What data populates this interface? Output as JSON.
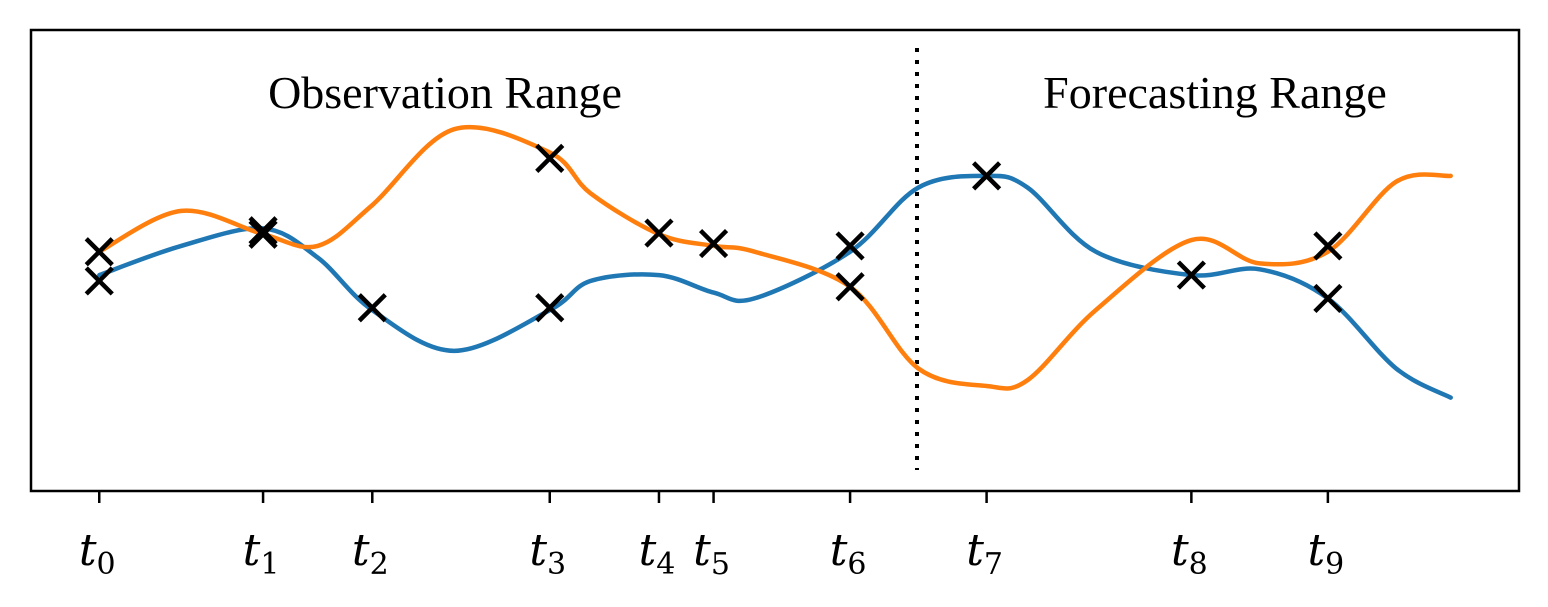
{
  "chart_data": {
    "type": "line",
    "annotations": {
      "observation": "Observation Range",
      "forecasting": "Forecasting Range"
    },
    "divider_x": 6.5,
    "xlim": [
      -0.5,
      10.4
    ],
    "ylim": [
      -1.85,
      2.1
    ],
    "ticks": [
      {
        "name": "t",
        "sub": "0",
        "x": 0
      },
      {
        "name": "t",
        "sub": "1",
        "x": 1.2
      },
      {
        "name": "t",
        "sub": "2",
        "x": 2.0
      },
      {
        "name": "t",
        "sub": "3",
        "x": 3.3
      },
      {
        "name": "t",
        "sub": "4",
        "x": 4.1
      },
      {
        "name": "t",
        "sub": "5",
        "x": 4.5
      },
      {
        "name": "t",
        "sub": "6",
        "x": 5.5
      },
      {
        "name": "t",
        "sub": "7",
        "x": 6.5
      },
      {
        "name": "t",
        "sub": "8",
        "x": 8.0
      },
      {
        "name": "t",
        "sub": "9",
        "x": 9.0
      }
    ],
    "series": [
      {
        "color": "#1f77b4",
        "x": [
          0,
          0.6,
          1.2,
          1.6,
          2.0,
          2.6,
          3.3,
          3.6,
          4.1,
          4.5,
          4.8,
          5.5,
          6.0,
          6.5,
          6.8,
          7.3,
          8.0,
          8.5,
          9.0,
          9.5,
          9.9
        ],
        "y": [
          0,
          0.25,
          0.4,
          0.15,
          -0.3,
          -0.65,
          -0.3,
          -0.05,
          0,
          -0.15,
          -0.2,
          0.2,
          0.75,
          0.85,
          0.75,
          0.2,
          0,
          0.05,
          -0.2,
          -0.8,
          -1.05
        ],
        "markers": [
          [
            0,
            -0.05
          ],
          [
            1.2,
            0.38
          ],
          [
            2.0,
            -0.28
          ],
          [
            3.3,
            -0.28
          ],
          [
            5.5,
            0.25
          ],
          [
            6.5,
            0.85
          ],
          [
            8.0,
            0.0
          ],
          [
            9.0,
            -0.2
          ]
        ]
      },
      {
        "color": "#ff7f0e",
        "x": [
          0,
          0.6,
          1.2,
          1.6,
          2.0,
          2.6,
          3.3,
          3.6,
          4.1,
          4.5,
          4.8,
          5.5,
          6.0,
          6.5,
          6.8,
          7.3,
          8.0,
          8.5,
          9.0,
          9.5,
          9.9
        ],
        "y": [
          0.2,
          0.55,
          0.35,
          0.25,
          0.6,
          1.25,
          1.05,
          0.7,
          0.35,
          0.25,
          0.2,
          -0.1,
          -0.8,
          -0.95,
          -0.9,
          -0.3,
          0.3,
          0.1,
          0.2,
          0.8,
          0.85
        ],
        "markers": [
          [
            0,
            0.2
          ],
          [
            1.2,
            0.35
          ],
          [
            3.3,
            1.0
          ],
          [
            4.1,
            0.36
          ],
          [
            4.5,
            0.27
          ],
          [
            5.5,
            -0.1
          ],
          [
            9.0,
            0.25
          ]
        ]
      }
    ]
  }
}
